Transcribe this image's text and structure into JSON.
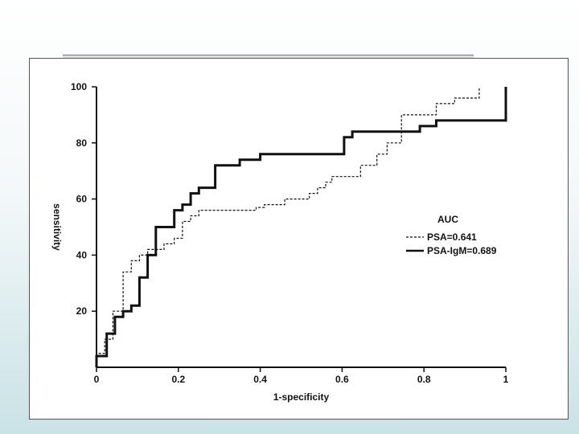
{
  "chart_data": {
    "type": "line",
    "title": "",
    "xlabel": "1-specificity",
    "ylabel": "sensitivity",
    "xlim": [
      0,
      1
    ],
    "ylim": [
      0,
      100
    ],
    "x_ticks": [
      "0",
      "0.2",
      "0.4",
      "0.6",
      "0.8",
      "1"
    ],
    "x_tick_values": [
      0,
      0.2,
      0.4,
      0.6,
      0.8,
      1
    ],
    "y_ticks": [
      "20",
      "40",
      "60",
      "80",
      "100"
    ],
    "y_tick_values": [
      20,
      40,
      60,
      80,
      100
    ],
    "grid": false,
    "legend_title": "AUC",
    "legend_placement": "right",
    "series": [
      {
        "name": "PSA=0.641",
        "style": "dashed",
        "color": "#111111",
        "points": [
          [
            0,
            0
          ],
          [
            0,
            5
          ],
          [
            0.02,
            5
          ],
          [
            0.02,
            10
          ],
          [
            0.04,
            10
          ],
          [
            0.04,
            20
          ],
          [
            0.065,
            20
          ],
          [
            0.065,
            34
          ],
          [
            0.085,
            34
          ],
          [
            0.085,
            38
          ],
          [
            0.105,
            38
          ],
          [
            0.105,
            40
          ],
          [
            0.125,
            40
          ],
          [
            0.125,
            42
          ],
          [
            0.165,
            42
          ],
          [
            0.165,
            44
          ],
          [
            0.19,
            44
          ],
          [
            0.19,
            46
          ],
          [
            0.21,
            46
          ],
          [
            0.21,
            52
          ],
          [
            0.23,
            52
          ],
          [
            0.23,
            54
          ],
          [
            0.25,
            54
          ],
          [
            0.25,
            56
          ],
          [
            0.39,
            56
          ],
          [
            0.39,
            57
          ],
          [
            0.41,
            57
          ],
          [
            0.41,
            58
          ],
          [
            0.46,
            58
          ],
          [
            0.46,
            60
          ],
          [
            0.52,
            60
          ],
          [
            0.52,
            62
          ],
          [
            0.54,
            62
          ],
          [
            0.54,
            64
          ],
          [
            0.56,
            64
          ],
          [
            0.56,
            66
          ],
          [
            0.575,
            66
          ],
          [
            0.575,
            68
          ],
          [
            0.645,
            68
          ],
          [
            0.645,
            72
          ],
          [
            0.685,
            72
          ],
          [
            0.685,
            76
          ],
          [
            0.71,
            76
          ],
          [
            0.71,
            80
          ],
          [
            0.745,
            80
          ],
          [
            0.745,
            90
          ],
          [
            0.83,
            90
          ],
          [
            0.83,
            94
          ],
          [
            0.875,
            94
          ],
          [
            0.875,
            96
          ],
          [
            0.935,
            96
          ],
          [
            0.935,
            100
          ]
        ]
      },
      {
        "name": "PSA-IgM=0.689",
        "style": "solid",
        "color": "#111111",
        "points": [
          [
            0,
            0
          ],
          [
            0,
            4
          ],
          [
            0.025,
            4
          ],
          [
            0.025,
            12
          ],
          [
            0.045,
            12
          ],
          [
            0.045,
            18
          ],
          [
            0.065,
            18
          ],
          [
            0.065,
            20
          ],
          [
            0.085,
            20
          ],
          [
            0.085,
            22
          ],
          [
            0.105,
            22
          ],
          [
            0.105,
            32
          ],
          [
            0.125,
            32
          ],
          [
            0.125,
            40
          ],
          [
            0.145,
            40
          ],
          [
            0.145,
            50
          ],
          [
            0.19,
            50
          ],
          [
            0.19,
            56
          ],
          [
            0.21,
            56
          ],
          [
            0.21,
            58
          ],
          [
            0.23,
            58
          ],
          [
            0.23,
            62
          ],
          [
            0.25,
            62
          ],
          [
            0.25,
            64
          ],
          [
            0.29,
            64
          ],
          [
            0.29,
            72
          ],
          [
            0.35,
            72
          ],
          [
            0.35,
            74
          ],
          [
            0.4,
            74
          ],
          [
            0.4,
            76
          ],
          [
            0.605,
            76
          ],
          [
            0.605,
            82
          ],
          [
            0.625,
            82
          ],
          [
            0.625,
            84
          ],
          [
            0.79,
            84
          ],
          [
            0.79,
            86
          ],
          [
            0.83,
            86
          ],
          [
            0.83,
            88
          ],
          [
            1,
            88
          ],
          [
            1,
            100
          ]
        ]
      }
    ]
  }
}
